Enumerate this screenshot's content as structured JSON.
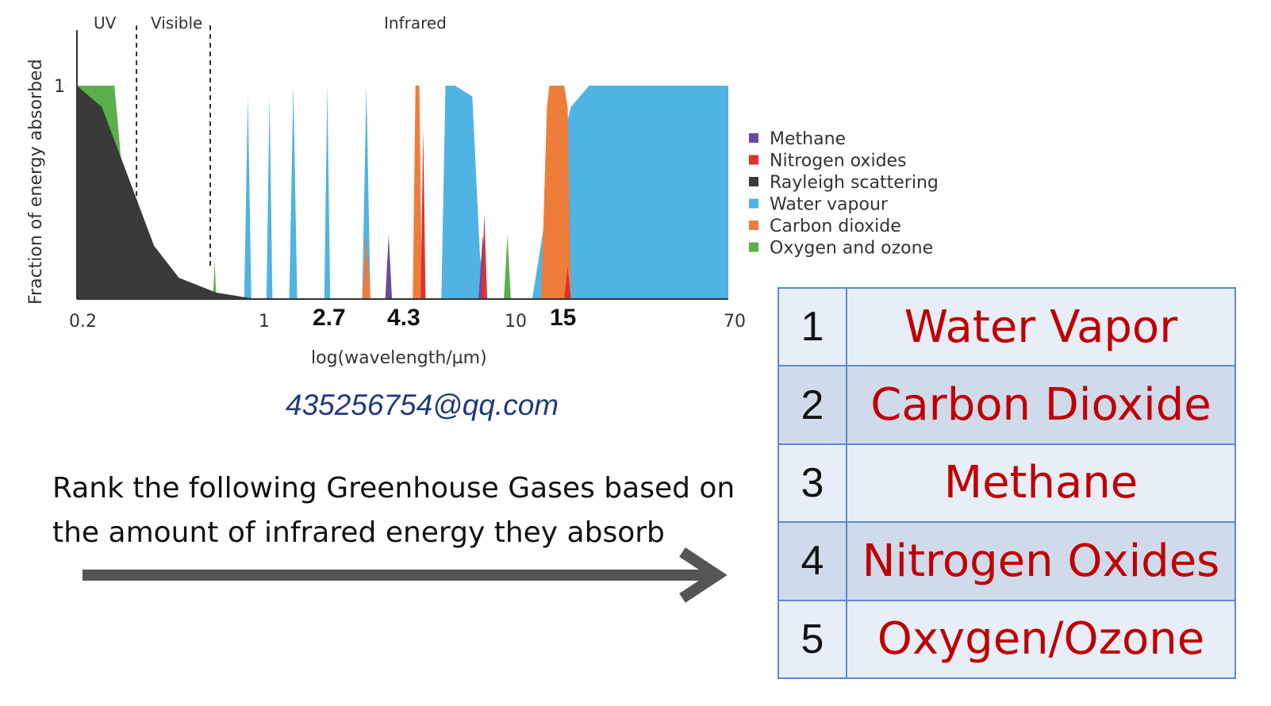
{
  "chart_data": {
    "type": "area",
    "ylabel": "Fraction of energy absorbed",
    "xlabel": "log(wavelength/µm)",
    "y_ticks": [
      "1"
    ],
    "x_ticks": [
      "0.2",
      "1",
      "10",
      "70"
    ],
    "highlight_ticks": [
      "2.7",
      "4.3",
      "15"
    ],
    "regions": [
      "UV",
      "Visible",
      "Infrared"
    ],
    "xlim": [
      0.2,
      70
    ],
    "ylim": [
      0,
      1
    ],
    "legend_position": "right",
    "legend": [
      {
        "name": "Methane",
        "color": "#6a4a9c"
      },
      {
        "name": "Nitrogen oxides",
        "color": "#e03030"
      },
      {
        "name": "Rayleigh scattering",
        "color": "#3a3a3a"
      },
      {
        "name": "Water vapour",
        "color": "#4fb3e3"
      },
      {
        "name": "Carbon dioxide",
        "color": "#ef7d3a"
      },
      {
        "name": "Oxygen and ozone",
        "color": "#5ab04a"
      }
    ],
    "series": [
      {
        "name": "Oxygen and ozone",
        "color": "#5ab04a",
        "points": [
          [
            0.2,
            0
          ],
          [
            0.2,
            1
          ],
          [
            0.28,
            1
          ],
          [
            0.29,
            0.8
          ],
          [
            0.3,
            0.6
          ],
          [
            0.31,
            0
          ],
          [
            0.68,
            0
          ],
          [
            0.69,
            0.18
          ],
          [
            0.7,
            0
          ],
          [
            9.3,
            0
          ],
          [
            9.6,
            0.3
          ],
          [
            9.9,
            0
          ],
          [
            13,
            0
          ],
          [
            14,
            0.1
          ],
          [
            15,
            0.12
          ],
          [
            17,
            0
          ]
        ]
      },
      {
        "name": "Water vapour",
        "color": "#4fb3e3",
        "points": [
          [
            0.9,
            0
          ],
          [
            0.93,
            0.95
          ],
          [
            0.96,
            0
          ],
          [
            1.1,
            0
          ],
          [
            1.13,
            0.95
          ],
          [
            1.16,
            0
          ],
          [
            1.35,
            0
          ],
          [
            1.4,
            1
          ],
          [
            1.45,
            0
          ],
          [
            1.85,
            0
          ],
          [
            1.9,
            1
          ],
          [
            1.95,
            0
          ],
          [
            2.6,
            0
          ],
          [
            2.7,
            1
          ],
          [
            2.8,
            0
          ],
          [
            5.3,
            0
          ],
          [
            5.5,
            1
          ],
          [
            6,
            1
          ],
          [
            7,
            0.95
          ],
          [
            7.5,
            0.2
          ],
          [
            8,
            0
          ],
          [
            12,
            0
          ],
          [
            14,
            0.5
          ],
          [
            17,
            0.9
          ],
          [
            20,
            1
          ],
          [
            30,
            1
          ],
          [
            70,
            1
          ],
          [
            70,
            0
          ]
        ]
      },
      {
        "name": "Carbon dioxide",
        "color": "#ef7d3a",
        "points": [
          [
            2.6,
            0
          ],
          [
            2.7,
            0.3
          ],
          [
            2.8,
            0
          ],
          [
            4.1,
            0
          ],
          [
            4.2,
            1
          ],
          [
            4.35,
            1
          ],
          [
            4.45,
            0
          ],
          [
            13,
            0
          ],
          [
            13.7,
            0.9
          ],
          [
            14,
            1
          ],
          [
            16,
            1
          ],
          [
            16.5,
            0.9
          ],
          [
            17,
            0
          ]
        ]
      },
      {
        "name": "Methane",
        "color": "#6a4a9c",
        "points": [
          [
            3.2,
            0
          ],
          [
            3.3,
            0.3
          ],
          [
            3.4,
            0
          ],
          [
            7.4,
            0
          ],
          [
            7.7,
            0.3
          ],
          [
            8,
            0
          ]
        ]
      },
      {
        "name": "Nitrogen oxides",
        "color": "#e03030",
        "points": [
          [
            4.4,
            0
          ],
          [
            4.5,
            0.8
          ],
          [
            4.6,
            0
          ],
          [
            7.6,
            0
          ],
          [
            7.8,
            0.4
          ],
          [
            8,
            0
          ],
          [
            16,
            0
          ],
          [
            16.5,
            0.15
          ],
          [
            17,
            0
          ]
        ]
      },
      {
        "name": "Rayleigh scattering",
        "color": "#3a3a3a",
        "points": [
          [
            0.2,
            0
          ],
          [
            0.2,
            1
          ],
          [
            0.25,
            0.9
          ],
          [
            0.3,
            0.65
          ],
          [
            0.4,
            0.25
          ],
          [
            0.5,
            0.1
          ],
          [
            0.7,
            0.03
          ],
          [
            1,
            0
          ],
          [
            1,
            0
          ]
        ]
      }
    ]
  },
  "email": "435256754@qq.com",
  "question": "Rank the following Greenhouse Gases based on the amount of infrared energy they absorb",
  "ranking": [
    {
      "rank": "1",
      "gas": "Water Vapor"
    },
    {
      "rank": "2",
      "gas": "Carbon Dioxide"
    },
    {
      "rank": "3",
      "gas": "Methane"
    },
    {
      "rank": "4",
      "gas": "Nitrogen Oxides"
    },
    {
      "rank": "5",
      "gas": "Oxygen/Ozone"
    }
  ]
}
